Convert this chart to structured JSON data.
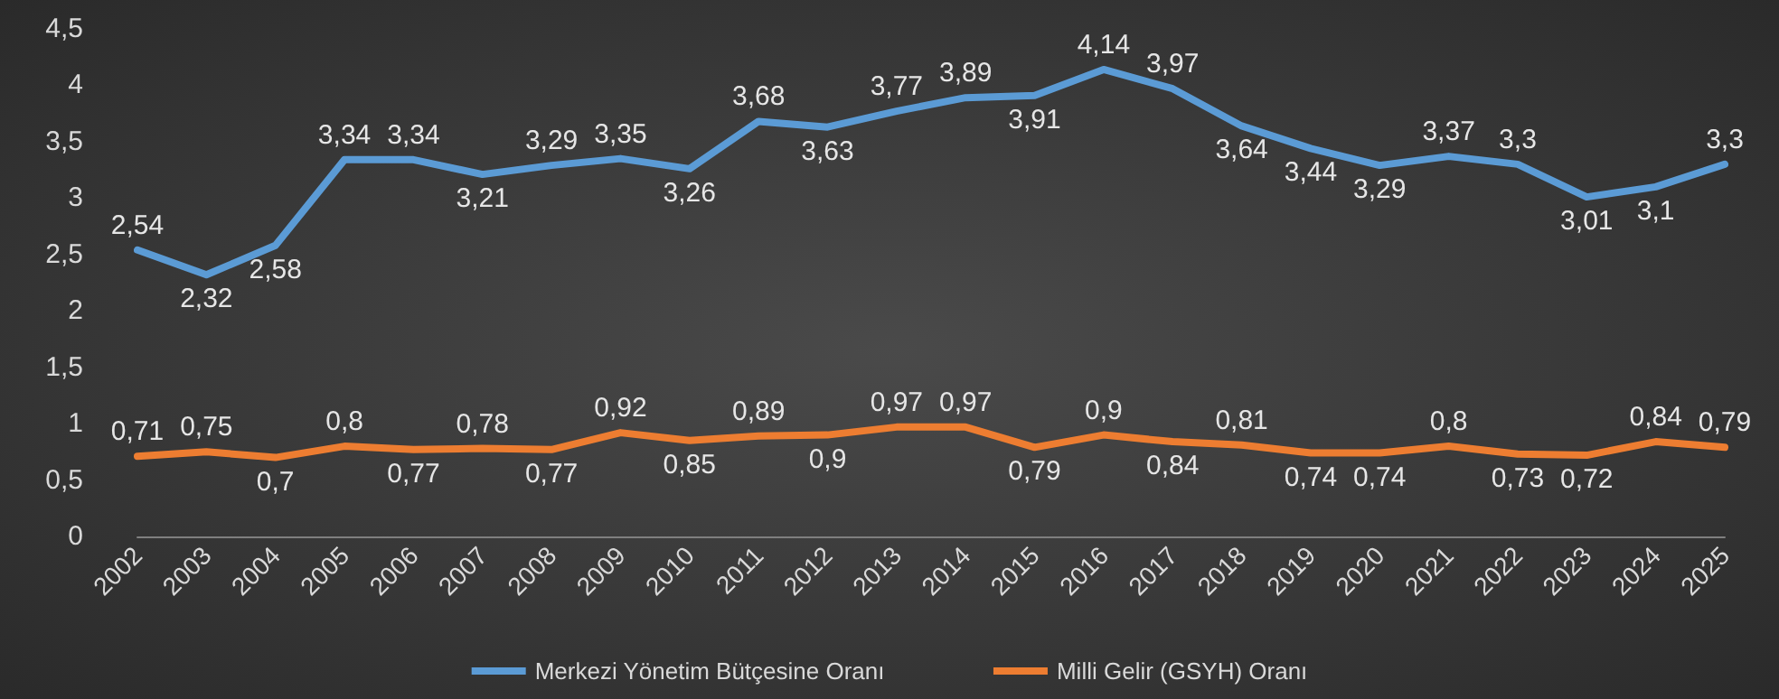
{
  "chart_data": {
    "type": "line",
    "categories": [
      "2002",
      "2003",
      "2004",
      "2005",
      "2006",
      "2007",
      "2008",
      "2009",
      "2010",
      "2011",
      "2012",
      "2013",
      "2014",
      "2015",
      "2016",
      "2017",
      "2018",
      "2019",
      "2020",
      "2021",
      "2022",
      "2023",
      "2024",
      "2025"
    ],
    "series": [
      {
        "name": "Merkezi Yönetim Bütçesine Oranı",
        "color": "#5b9bd5",
        "values": [
          2.54,
          2.32,
          2.58,
          3.34,
          3.34,
          3.21,
          3.29,
          3.35,
          3.26,
          3.68,
          3.63,
          3.77,
          3.89,
          3.91,
          4.14,
          3.97,
          3.64,
          3.44,
          3.29,
          3.37,
          3.3,
          3.01,
          3.1,
          3.3
        ],
        "value_labels": [
          "2,54",
          "2,32",
          "2,58",
          "3,34",
          "3,34",
          "3,21",
          "3,29",
          "3,35",
          "3,26",
          "3,68",
          "3,63",
          "3,77",
          "3,89",
          "3,91",
          "4,14",
          "3,97",
          "3,64",
          "3,44",
          "3,29",
          "3,37",
          "3,3",
          "3,01",
          "3,1",
          "3,3"
        ]
      },
      {
        "name": "Milli Gelir (GSYH) Oranı",
        "color": "#ed7d31",
        "values": [
          0.71,
          0.75,
          0.7,
          0.8,
          0.77,
          0.78,
          0.77,
          0.92,
          0.85,
          0.89,
          0.9,
          0.97,
          0.97,
          0.79,
          0.9,
          0.84,
          0.81,
          0.74,
          0.74,
          0.8,
          0.73,
          0.72,
          0.84,
          0.79
        ],
        "value_labels": [
          "0,71",
          "0,75",
          "0,7",
          "0,8",
          "0,77",
          "0,78",
          "0,77",
          "0,92",
          "0,85",
          "0,89",
          "0,9",
          "0,97",
          "0,97",
          "0,79",
          "0,9",
          "0,84",
          "0,81",
          "0,74",
          "0,74",
          "0,8",
          "0,73",
          "0,72",
          "0,84",
          "0,79"
        ]
      }
    ],
    "ylim": [
      0,
      4.5
    ],
    "yticks": [
      0,
      {
        "value": 0.5,
        "label": "0,5"
      },
      1,
      {
        "value": 1.5,
        "label": "1,5"
      },
      2,
      {
        "value": 2.5,
        "label": "2,5"
      },
      3,
      {
        "value": 3.5,
        "label": "3,5"
      },
      4,
      {
        "value": 4.5,
        "label": "4,5"
      }
    ],
    "grid": false,
    "legend": "bottom",
    "marker": "none",
    "line_style": "solid"
  }
}
